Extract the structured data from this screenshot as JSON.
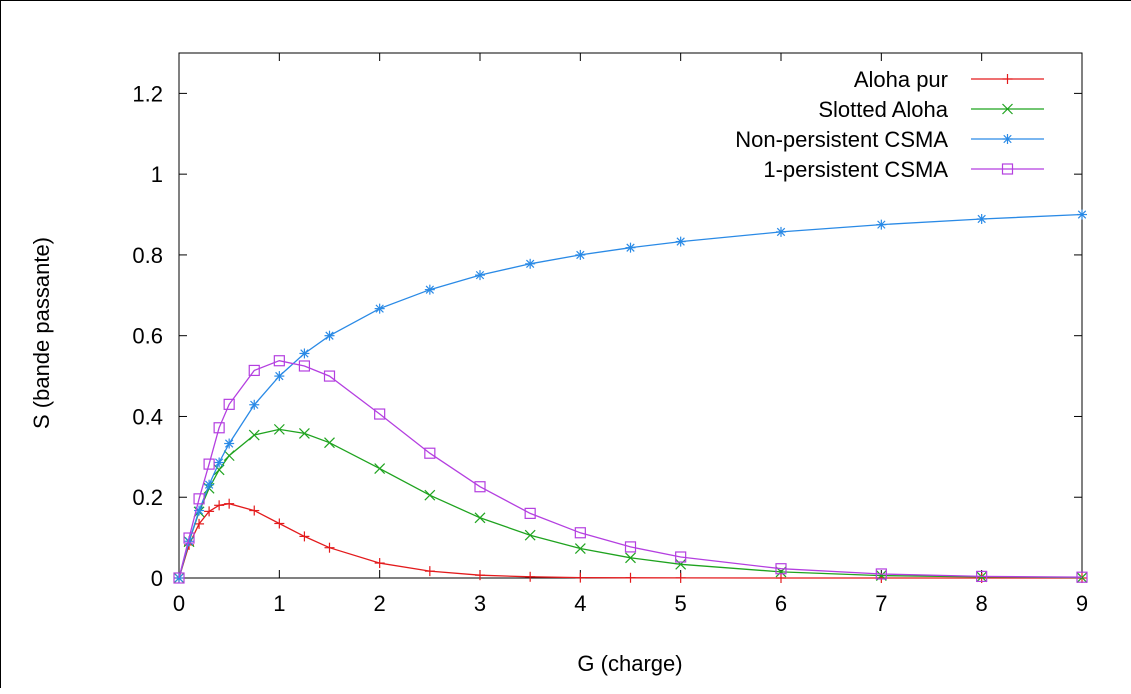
{
  "chart_data": {
    "type": "line",
    "title": "",
    "xlabel": "G (charge)",
    "ylabel": "S (bande passante)",
    "xlim": [
      0,
      9
    ],
    "ylim": [
      0,
      1.3
    ],
    "x_ticks": [
      0,
      1,
      2,
      3,
      4,
      5,
      6,
      7,
      8,
      9
    ],
    "x_tick_labels": [
      "0",
      "1",
      "2",
      "3",
      "4",
      "5",
      "6",
      "7",
      "8",
      "9"
    ],
    "y_ticks": [
      0,
      0.2,
      0.4,
      0.6,
      0.8,
      1,
      1.2
    ],
    "y_tick_labels": [
      "0",
      "0.2",
      "0.4",
      "0.6",
      "0.8",
      "1",
      "1.2"
    ],
    "grid": false,
    "legend_position": "top-right",
    "x": [
      0,
      0.1,
      0.2,
      0.3,
      0.4,
      0.5,
      0.75,
      1,
      1.25,
      1.5,
      2,
      2.5,
      3,
      3.5,
      4,
      4.5,
      5,
      6,
      7,
      8,
      9
    ],
    "series": [
      {
        "name": "Aloha pur",
        "color": "#e31a1c",
        "marker": "plus",
        "values": [
          0,
          0.082,
          0.134,
          0.165,
          0.18,
          0.184,
          0.167,
          0.135,
          0.103,
          0.075,
          0.037,
          0.017,
          0.007,
          0.003,
          0.001,
          0.0006,
          0.0002,
          0,
          0,
          0,
          0
        ]
      },
      {
        "name": "Slotted Aloha",
        "color": "#1fa31f",
        "marker": "x",
        "values": [
          0,
          0.09,
          0.164,
          0.222,
          0.268,
          0.303,
          0.354,
          0.368,
          0.358,
          0.335,
          0.271,
          0.205,
          0.149,
          0.106,
          0.073,
          0.05,
          0.034,
          0.015,
          0.006,
          0.003,
          0.001
        ]
      },
      {
        "name": "Non-persistent CSMA",
        "color": "#2a8ae6",
        "marker": "asterisk",
        "values": [
          0,
          0.091,
          0.167,
          0.231,
          0.286,
          0.333,
          0.429,
          0.5,
          0.556,
          0.6,
          0.667,
          0.714,
          0.75,
          0.778,
          0.8,
          0.818,
          0.833,
          0.857,
          0.875,
          0.889,
          0.9
        ]
      },
      {
        "name": "1-persistent CSMA",
        "color": "#b43fe0",
        "marker": "square",
        "values": [
          0,
          0.099,
          0.196,
          0.282,
          0.372,
          0.43,
          0.514,
          0.538,
          0.525,
          0.5,
          0.406,
          0.309,
          0.226,
          0.16,
          0.112,
          0.077,
          0.052,
          0.023,
          0.01,
          0.004,
          0.002
        ]
      }
    ]
  }
}
